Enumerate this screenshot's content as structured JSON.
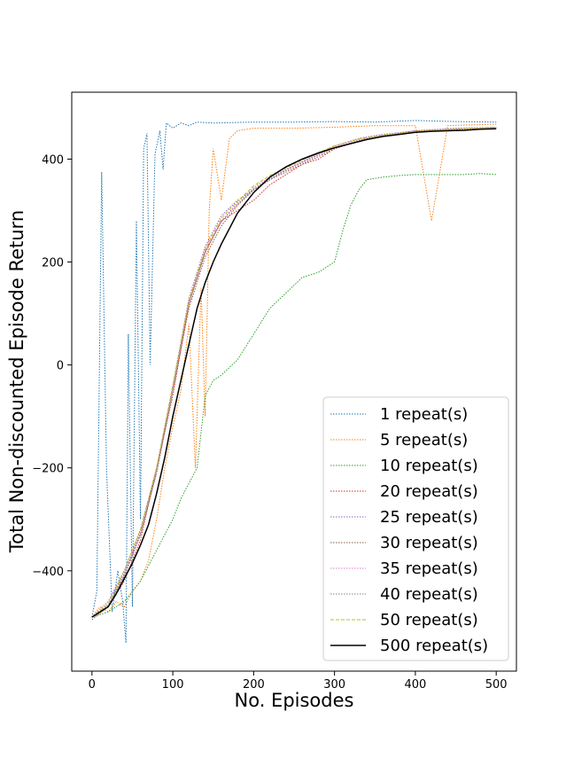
{
  "chart_data": {
    "type": "line",
    "title": "",
    "xlabel": "No. Episodes",
    "ylabel": "Total Non-discounted Episode Return",
    "xlim": [
      -25,
      525
    ],
    "ylim": [
      -595,
      530
    ],
    "xticks": [
      0,
      100,
      200,
      300,
      400,
      500
    ],
    "yticks": [
      -400,
      -200,
      0,
      200,
      400
    ],
    "grid": false,
    "legend_position": "lower-right",
    "series": [
      {
        "name": "1 repeat(s)",
        "color": "#1f77b4",
        "style": "dotted",
        "values": [
          [
            0,
            -490
          ],
          [
            6,
            -440
          ],
          [
            12,
            375
          ],
          [
            18,
            -200
          ],
          [
            25,
            -480
          ],
          [
            32,
            -400
          ],
          [
            38,
            -460
          ],
          [
            42,
            -540
          ],
          [
            45,
            60
          ],
          [
            50,
            -470
          ],
          [
            55,
            280
          ],
          [
            60,
            -300
          ],
          [
            64,
            420
          ],
          [
            68,
            450
          ],
          [
            72,
            0
          ],
          [
            78,
            410
          ],
          [
            84,
            455
          ],
          [
            88,
            380
          ],
          [
            92,
            470
          ],
          [
            100,
            460
          ],
          [
            110,
            470
          ],
          [
            120,
            465
          ],
          [
            130,
            472
          ],
          [
            150,
            470
          ],
          [
            200,
            472
          ],
          [
            250,
            472
          ],
          [
            300,
            473
          ],
          [
            350,
            472
          ],
          [
            400,
            475
          ],
          [
            450,
            473
          ],
          [
            500,
            472
          ]
        ]
      },
      {
        "name": "5 repeat(s)",
        "color": "#ff7f0e",
        "style": "dotted",
        "values": [
          [
            0,
            -490
          ],
          [
            10,
            -470
          ],
          [
            20,
            -480
          ],
          [
            30,
            -460
          ],
          [
            40,
            -470
          ],
          [
            50,
            -440
          ],
          [
            60,
            -420
          ],
          [
            70,
            -380
          ],
          [
            80,
            -300
          ],
          [
            90,
            -200
          ],
          [
            100,
            -120
          ],
          [
            110,
            -50
          ],
          [
            120,
            80
          ],
          [
            128,
            -200
          ],
          [
            135,
            150
          ],
          [
            140,
            -100
          ],
          [
            145,
            300
          ],
          [
            150,
            420
          ],
          [
            160,
            320
          ],
          [
            170,
            440
          ],
          [
            180,
            455
          ],
          [
            200,
            460
          ],
          [
            250,
            460
          ],
          [
            300,
            462
          ],
          [
            350,
            465
          ],
          [
            400,
            465
          ],
          [
            420,
            280
          ],
          [
            440,
            465
          ],
          [
            500,
            468
          ]
        ]
      },
      {
        "name": "10 repeat(s)",
        "color": "#2ca02c",
        "style": "dotted",
        "values": [
          [
            0,
            -490
          ],
          [
            20,
            -480
          ],
          [
            40,
            -460
          ],
          [
            60,
            -420
          ],
          [
            80,
            -360
          ],
          [
            100,
            -300
          ],
          [
            110,
            -260
          ],
          [
            120,
            -230
          ],
          [
            130,
            -200
          ],
          [
            140,
            -60
          ],
          [
            150,
            -30
          ],
          [
            160,
            -20
          ],
          [
            180,
            10
          ],
          [
            200,
            60
          ],
          [
            220,
            110
          ],
          [
            240,
            140
          ],
          [
            260,
            170
          ],
          [
            280,
            180
          ],
          [
            300,
            200
          ],
          [
            310,
            260
          ],
          [
            320,
            310
          ],
          [
            330,
            340
          ],
          [
            340,
            360
          ],
          [
            360,
            365
          ],
          [
            380,
            368
          ],
          [
            400,
            370
          ],
          [
            420,
            370
          ],
          [
            440,
            370
          ],
          [
            460,
            370
          ],
          [
            480,
            372
          ],
          [
            500,
            370
          ]
        ]
      },
      {
        "name": "20 repeat(s)",
        "color": "#d62728",
        "style": "dotted",
        "values": [
          [
            0,
            -490
          ],
          [
            20,
            -470
          ],
          [
            40,
            -420
          ],
          [
            60,
            -340
          ],
          [
            80,
            -200
          ],
          [
            100,
            -60
          ],
          [
            120,
            120
          ],
          [
            140,
            220
          ],
          [
            160,
            280
          ],
          [
            180,
            300
          ],
          [
            200,
            320
          ],
          [
            220,
            350
          ],
          [
            240,
            370
          ],
          [
            260,
            390
          ],
          [
            280,
            400
          ],
          [
            300,
            420
          ],
          [
            320,
            430
          ],
          [
            340,
            440
          ],
          [
            360,
            445
          ],
          [
            380,
            450
          ],
          [
            400,
            455
          ],
          [
            450,
            458
          ],
          [
            500,
            460
          ]
        ]
      },
      {
        "name": "25 repeat(s)",
        "color": "#9467bd",
        "style": "dotted",
        "values": [
          [
            0,
            -490
          ],
          [
            20,
            -460
          ],
          [
            40,
            -400
          ],
          [
            60,
            -320
          ],
          [
            80,
            -200
          ],
          [
            100,
            -40
          ],
          [
            120,
            130
          ],
          [
            140,
            230
          ],
          [
            160,
            290
          ],
          [
            180,
            320
          ],
          [
            200,
            340
          ],
          [
            220,
            360
          ],
          [
            240,
            380
          ],
          [
            260,
            395
          ],
          [
            280,
            410
          ],
          [
            300,
            425
          ],
          [
            330,
            440
          ],
          [
            360,
            448
          ],
          [
            400,
            455
          ],
          [
            450,
            460
          ],
          [
            500,
            462
          ]
        ]
      },
      {
        "name": "30 repeat(s)",
        "color": "#8c564b",
        "style": "dotted",
        "values": [
          [
            0,
            -495
          ],
          [
            20,
            -470
          ],
          [
            40,
            -410
          ],
          [
            60,
            -330
          ],
          [
            80,
            -210
          ],
          [
            100,
            -50
          ],
          [
            120,
            110
          ],
          [
            140,
            210
          ],
          [
            160,
            270
          ],
          [
            180,
            310
          ],
          [
            200,
            340
          ],
          [
            220,
            360
          ],
          [
            240,
            375
          ],
          [
            260,
            390
          ],
          [
            280,
            405
          ],
          [
            300,
            420
          ],
          [
            330,
            435
          ],
          [
            360,
            445
          ],
          [
            400,
            452
          ],
          [
            450,
            458
          ],
          [
            500,
            460
          ]
        ]
      },
      {
        "name": "35 repeat(s)",
        "color": "#e377c2",
        "style": "dotted",
        "values": [
          [
            0,
            -490
          ],
          [
            20,
            -465
          ],
          [
            40,
            -405
          ],
          [
            60,
            -325
          ],
          [
            80,
            -205
          ],
          [
            100,
            -45
          ],
          [
            120,
            120
          ],
          [
            140,
            220
          ],
          [
            160,
            280
          ],
          [
            180,
            315
          ],
          [
            200,
            345
          ],
          [
            220,
            365
          ],
          [
            240,
            380
          ],
          [
            260,
            395
          ],
          [
            280,
            410
          ],
          [
            300,
            425
          ],
          [
            330,
            438
          ],
          [
            360,
            446
          ],
          [
            400,
            453
          ],
          [
            450,
            458
          ],
          [
            500,
            461
          ]
        ]
      },
      {
        "name": "40 repeat(s)",
        "color": "#7f7f7f",
        "style": "dotted",
        "values": [
          [
            0,
            -490
          ],
          [
            20,
            -468
          ],
          [
            40,
            -408
          ],
          [
            60,
            -328
          ],
          [
            80,
            -208
          ],
          [
            100,
            -48
          ],
          [
            120,
            118
          ],
          [
            140,
            218
          ],
          [
            160,
            278
          ],
          [
            180,
            312
          ],
          [
            200,
            342
          ],
          [
            220,
            362
          ],
          [
            240,
            378
          ],
          [
            260,
            393
          ],
          [
            280,
            408
          ],
          [
            300,
            422
          ],
          [
            330,
            436
          ],
          [
            360,
            445
          ],
          [
            400,
            452
          ],
          [
            450,
            457
          ],
          [
            500,
            460
          ]
        ]
      },
      {
        "name": "50 repeat(s)",
        "color": "#bcbd22",
        "style": "dashed",
        "values": [
          [
            0,
            -490
          ],
          [
            20,
            -465
          ],
          [
            40,
            -400
          ],
          [
            60,
            -320
          ],
          [
            80,
            -200
          ],
          [
            100,
            -40
          ],
          [
            120,
            125
          ],
          [
            140,
            225
          ],
          [
            160,
            285
          ],
          [
            180,
            318
          ],
          [
            200,
            348
          ],
          [
            220,
            368
          ],
          [
            240,
            383
          ],
          [
            260,
            398
          ],
          [
            280,
            412
          ],
          [
            300,
            426
          ],
          [
            330,
            439
          ],
          [
            360,
            447
          ],
          [
            400,
            454
          ],
          [
            450,
            459
          ],
          [
            500,
            462
          ]
        ]
      },
      {
        "name": "500 repeat(s)",
        "color": "#000000",
        "style": "solid",
        "values": [
          [
            0,
            -490
          ],
          [
            10,
            -480
          ],
          [
            20,
            -470
          ],
          [
            30,
            -445
          ],
          [
            40,
            -415
          ],
          [
            50,
            -385
          ],
          [
            60,
            -350
          ],
          [
            70,
            -310
          ],
          [
            80,
            -250
          ],
          [
            90,
            -180
          ],
          [
            100,
            -100
          ],
          [
            110,
            -30
          ],
          [
            120,
            40
          ],
          [
            130,
            110
          ],
          [
            140,
            160
          ],
          [
            150,
            200
          ],
          [
            160,
            235
          ],
          [
            170,
            265
          ],
          [
            180,
            295
          ],
          [
            190,
            315
          ],
          [
            200,
            335
          ],
          [
            220,
            365
          ],
          [
            240,
            385
          ],
          [
            260,
            400
          ],
          [
            280,
            412
          ],
          [
            300,
            422
          ],
          [
            320,
            430
          ],
          [
            340,
            438
          ],
          [
            360,
            444
          ],
          [
            380,
            448
          ],
          [
            400,
            452
          ],
          [
            420,
            454
          ],
          [
            440,
            455
          ],
          [
            460,
            456
          ],
          [
            480,
            458
          ],
          [
            500,
            459
          ]
        ]
      }
    ]
  }
}
